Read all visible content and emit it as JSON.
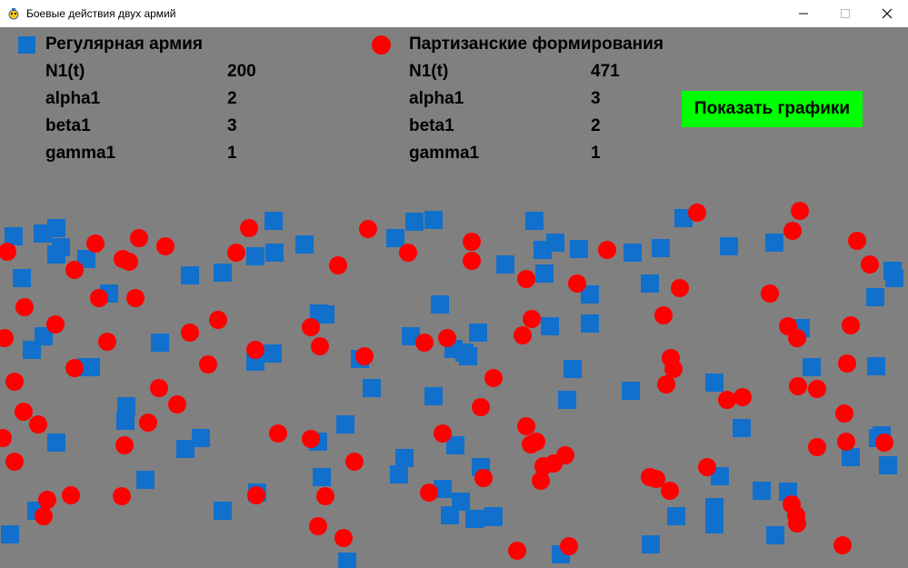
{
  "window": {
    "title": "Боевые действия двух армий",
    "minimize_symbol": "—",
    "maximize_symbol": "☐",
    "close_symbol": "✕"
  },
  "regular_army": {
    "title": "Регулярная армия",
    "marker_icon": "blue-square",
    "color": "#1170cc",
    "params": [
      {
        "label": "N1(t)",
        "value": "200"
      },
      {
        "label": "alpha1",
        "value": "2"
      },
      {
        "label": "beta1",
        "value": "3"
      },
      {
        "label": "gamma1",
        "value": "1"
      }
    ]
  },
  "partisans": {
    "title": "Партизанские формирования",
    "marker_icon": "red-circle",
    "color": "#ff0000",
    "params": [
      {
        "label": "N1(t)",
        "value": "471"
      },
      {
        "label": "alpha1",
        "value": "3"
      },
      {
        "label": "beta1",
        "value": "2"
      },
      {
        "label": "gamma1",
        "value": "1"
      }
    ]
  },
  "show_graphs_button": {
    "label": "Показать графики",
    "color": "#00ff00"
  },
  "background_color": "#808080"
}
